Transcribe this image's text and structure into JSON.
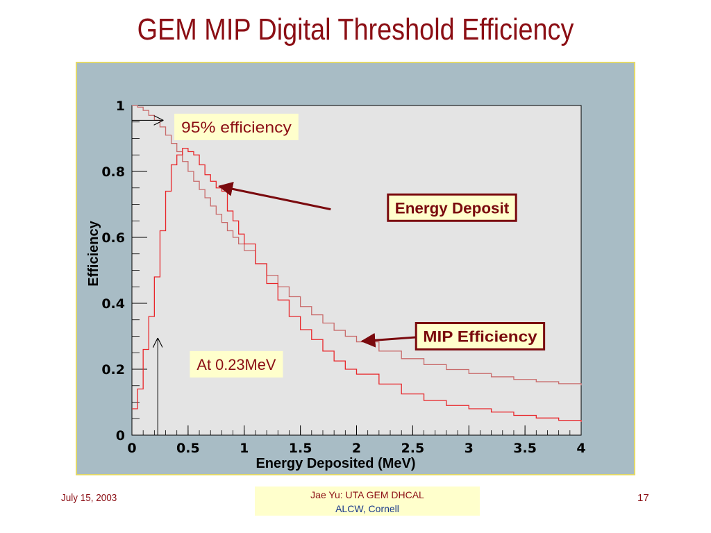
{
  "slide": {
    "title": "GEM MIP Digital Threshold Efficiency",
    "footer": {
      "date": "July 15, 2003",
      "center_line1": "Jae Yu: UTA GEM DHCAL",
      "center_line2": "ALCW, Cornell",
      "page": "17"
    }
  },
  "chart_data": {
    "type": "line",
    "xlabel": "Energy Deposited (MeV)",
    "ylabel": "Efficiency",
    "xlim": [
      0,
      4
    ],
    "ylim": [
      0,
      1.0
    ],
    "x_ticks": [
      "0",
      "0.5",
      "1",
      "1.5",
      "2",
      "2.5",
      "3",
      "3.5",
      "4"
    ],
    "y_ticks": [
      "0",
      "0.2",
      "0.4",
      "0.6",
      "0.8",
      "1"
    ],
    "grid": false,
    "background": "#e4e4e4",
    "frame_color": "#a8bcc5",
    "series": [
      {
        "id": "mip_efficiency",
        "style": "step",
        "color": "#c86a6a",
        "x": [
          0,
          0.05,
          0.1,
          0.15,
          0.2,
          0.25,
          0.3,
          0.35,
          0.4,
          0.45,
          0.5,
          0.55,
          0.6,
          0.65,
          0.7,
          0.75,
          0.8,
          0.85,
          0.9,
          0.95,
          1.0,
          1.1,
          1.2,
          1.3,
          1.4,
          1.5,
          1.6,
          1.7,
          1.8,
          1.9,
          2.0,
          2.2,
          2.4,
          2.6,
          2.8,
          3.0,
          3.2,
          3.4,
          3.6,
          3.8,
          4.0
        ],
        "y": [
          1.0,
          0.995,
          0.985,
          0.97,
          0.955,
          0.935,
          0.91,
          0.885,
          0.86,
          0.83,
          0.8,
          0.77,
          0.745,
          0.72,
          0.695,
          0.67,
          0.645,
          0.62,
          0.6,
          0.58,
          0.56,
          0.52,
          0.485,
          0.45,
          0.42,
          0.39,
          0.365,
          0.34,
          0.318,
          0.3,
          0.283,
          0.255,
          0.232,
          0.214,
          0.199,
          0.187,
          0.177,
          0.169,
          0.162,
          0.156,
          0.151
        ]
      },
      {
        "id": "energy_deposit",
        "style": "step",
        "color": "#e8262a",
        "x": [
          0,
          0.05,
          0.1,
          0.15,
          0.2,
          0.25,
          0.3,
          0.35,
          0.4,
          0.45,
          0.5,
          0.55,
          0.6,
          0.65,
          0.7,
          0.75,
          0.8,
          0.85,
          0.9,
          0.95,
          1.0,
          1.1,
          1.2,
          1.3,
          1.4,
          1.5,
          1.6,
          1.7,
          1.8,
          1.9,
          2.0,
          2.2,
          2.4,
          2.6,
          2.8,
          3.0,
          3.2,
          3.4,
          3.6,
          3.8,
          4.0
        ],
        "y": [
          0.08,
          0.14,
          0.26,
          0.36,
          0.48,
          0.62,
          0.74,
          0.82,
          0.85,
          0.87,
          0.86,
          0.85,
          0.82,
          0.79,
          0.77,
          0.75,
          0.74,
          0.68,
          0.65,
          0.61,
          0.58,
          0.52,
          0.46,
          0.41,
          0.36,
          0.32,
          0.29,
          0.255,
          0.225,
          0.2,
          0.185,
          0.155,
          0.125,
          0.105,
          0.09,
          0.08,
          0.07,
          0.06,
          0.052,
          0.045,
          0.04
        ]
      }
    ],
    "annotations": [
      {
        "id": "label_95",
        "text": "95% efficiency",
        "style": "yellow-box",
        "x": 0.93,
        "y": 0.935
      },
      {
        "id": "label_energy_deposit",
        "text": "Energy Deposit",
        "style": "boxed",
        "x": 2.85,
        "y": 0.69
      },
      {
        "id": "label_mip_efficiency",
        "text": "MIP Efficiency",
        "style": "boxed",
        "x": 3.1,
        "y": 0.3
      },
      {
        "id": "label_threshold",
        "text": "At 0.23MeV",
        "style": "yellow-box",
        "x": 0.93,
        "y": 0.215
      }
    ],
    "arrows": [
      {
        "id": "arrow_95_marker",
        "from": [
          0.0,
          0.955
        ],
        "to": [
          0.28,
          0.955
        ],
        "color": "#000000",
        "head": "open"
      },
      {
        "id": "arrow_threshold",
        "from": [
          0.23,
          0.0
        ],
        "to": [
          0.23,
          0.295
        ],
        "color": "#000000",
        "head": "open"
      },
      {
        "id": "arrow_energy_deposit",
        "from": [
          1.77,
          0.685
        ],
        "to": [
          0.78,
          0.755
        ],
        "color": "#7a0a0e",
        "head": "filled"
      },
      {
        "id": "arrow_mip_efficiency",
        "from": [
          2.85,
          0.305
        ],
        "to": [
          2.05,
          0.285
        ],
        "color": "#7a0a0e",
        "head": "filled"
      }
    ]
  }
}
